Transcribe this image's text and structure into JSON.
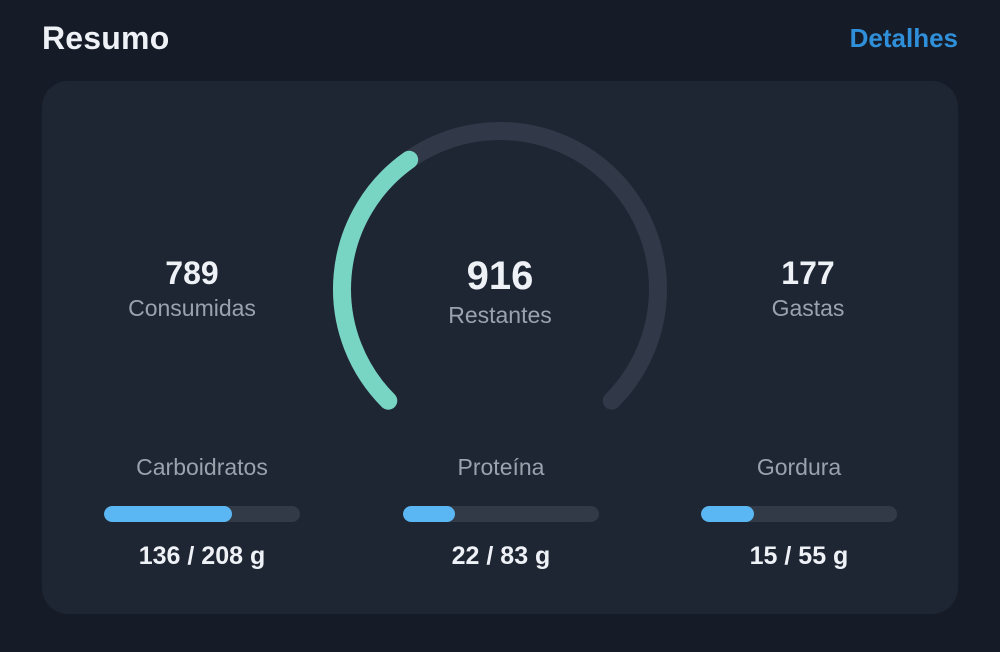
{
  "header": {
    "title": "Resumo",
    "details_link": "Detalhes"
  },
  "summary": {
    "consumed": {
      "value": "789",
      "label": "Consumidas"
    },
    "remaining": {
      "value": "916",
      "label": "Restantes"
    },
    "burned": {
      "value": "177",
      "label": "Gastas"
    },
    "gauge_progress_fraction": 0.37
  },
  "macros": [
    {
      "label": "Carboidratos",
      "value_text": "136 / 208 g",
      "consumed": 136,
      "goal": 208
    },
    {
      "label": "Proteína",
      "value_text": "22 / 83 g",
      "consumed": 22,
      "goal": 83
    },
    {
      "label": "Gordura",
      "value_text": "15 / 55 g",
      "consumed": 15,
      "goal": 55
    }
  ],
  "colors": {
    "background": "#151b27",
    "card": "#1f2633",
    "gauge_fill": "#79d5c3",
    "gauge_track": "#313847",
    "bar_fill": "#5bb7f3",
    "bar_track": "#333a47",
    "link": "#2f8fd8"
  }
}
